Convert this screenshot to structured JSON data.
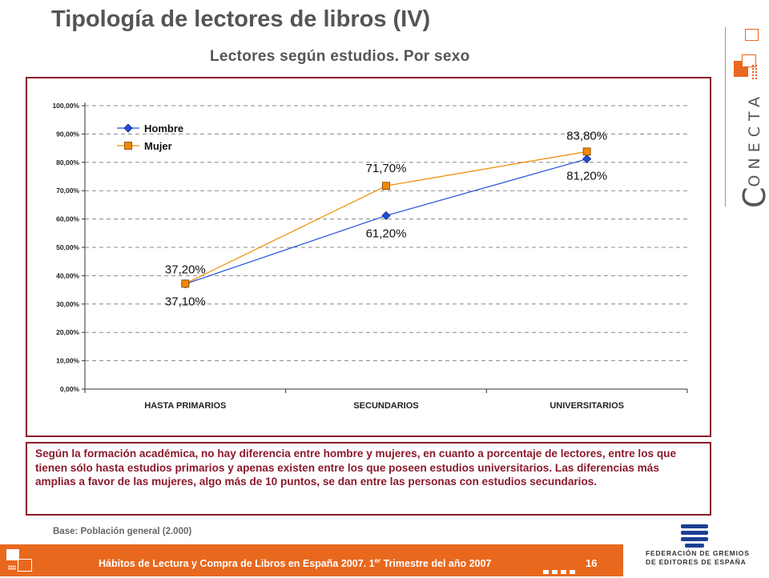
{
  "header": {
    "title": "Tipología de lectores de libros (IV)",
    "subtitle": "Lectores según estudios. Por sexo"
  },
  "brand": {
    "first_letter": "C",
    "rest": "ONECTA"
  },
  "chart_data": {
    "type": "line",
    "categories": [
      "HASTA PRIMARIOS",
      "SECUNDARIOS",
      "UNIVERSITARIOS"
    ],
    "series": [
      {
        "name": "Hombre",
        "values": [
          37.1,
          61.2,
          81.2
        ],
        "labels": [
          "37,10%",
          "61,20%",
          "81,20%"
        ],
        "color": "#1f4fd6",
        "marker": "diamond"
      },
      {
        "name": "Mujer",
        "values": [
          37.2,
          71.7,
          83.8
        ],
        "labels": [
          "37,20%",
          "71,70%",
          "83,80%"
        ],
        "color": "#f08a00",
        "marker": "square"
      }
    ],
    "yticks": [
      "0,00%",
      "10,00%",
      "20,00%",
      "30,00%",
      "40,00%",
      "50,00%",
      "60,00%",
      "70,00%",
      "80,00%",
      "90,00%",
      "100,00%"
    ],
    "ylim": [
      0,
      100
    ],
    "grid": true,
    "legend": "top-left"
  },
  "note": "Según la formación académica, no hay diferencia entre hombre y mujeres, en cuanto a porcentaje de lectores, entre los que tienen sólo hasta estudios primarios y apenas existen entre los que poseen estudios universitarios. Las diferencias más amplias a favor de las mujeres, algo más de 10 puntos, se dan entre las personas con estudios secundarios.",
  "base": "Base: Población general (2.000)",
  "footer": {
    "text_before_sup": "Hábitos de Lectura y Compra de Libros en España 2007. 1",
    "sup": "er",
    "text_after_sup": " Trimestre del año 2007",
    "page": "16"
  },
  "federation": {
    "line1": "FEDERACIÓN DE GREMIOS",
    "line2": "DE EDITORES DE ESPAÑA"
  },
  "colors": {
    "accent": "#e8681e",
    "frame": "#8b1a2b",
    "text_gray": "#555555"
  }
}
